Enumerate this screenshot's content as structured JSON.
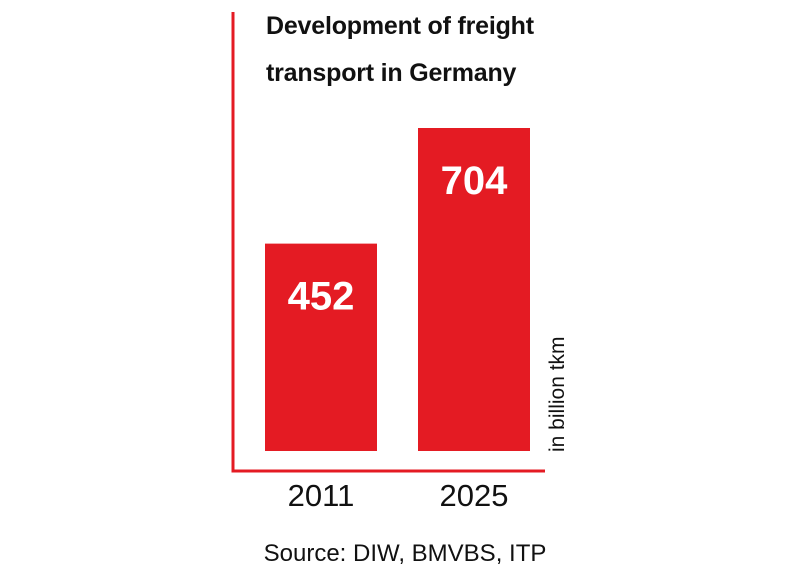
{
  "chart_data": {
    "type": "bar",
    "title_lines": [
      "Development of freight",
      "transport in Germany"
    ],
    "categories": [
      "2011",
      "2025"
    ],
    "values": [
      452,
      704
    ],
    "unit_label": "in billion tkm",
    "source": "Source: DIW, BMVBS, ITP",
    "ylim": [
      0,
      704
    ],
    "grid": false,
    "bar_color": "#e41b23",
    "axis_color": "#e41b23",
    "value_label_color": "#ffffff"
  }
}
